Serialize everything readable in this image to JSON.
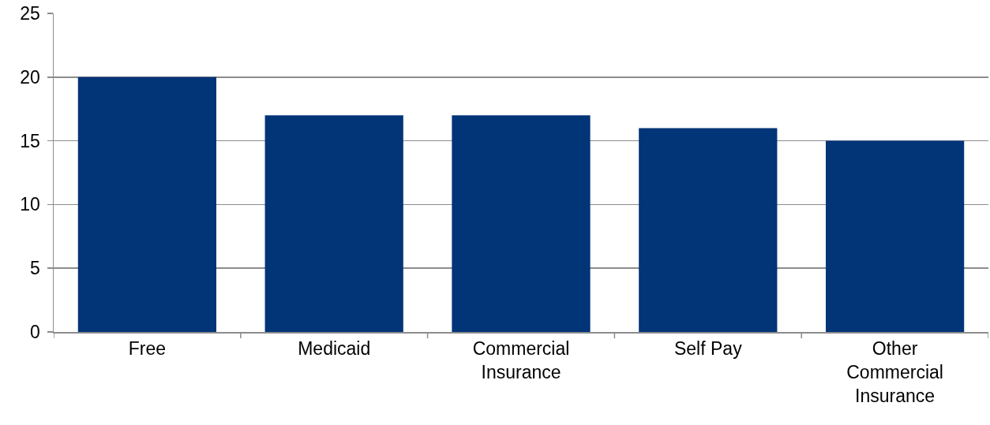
{
  "chart_data": {
    "type": "bar",
    "categories": [
      "Free",
      "Medicaid",
      "Commercial Insurance",
      "Self Pay",
      "Other Commercial Insurance"
    ],
    "values": [
      20,
      17,
      17,
      16,
      15
    ],
    "color": "#023478",
    "ylim": [
      0,
      25
    ],
    "yticks": [
      0,
      5,
      10,
      15,
      20,
      25
    ],
    "grid": "y"
  }
}
